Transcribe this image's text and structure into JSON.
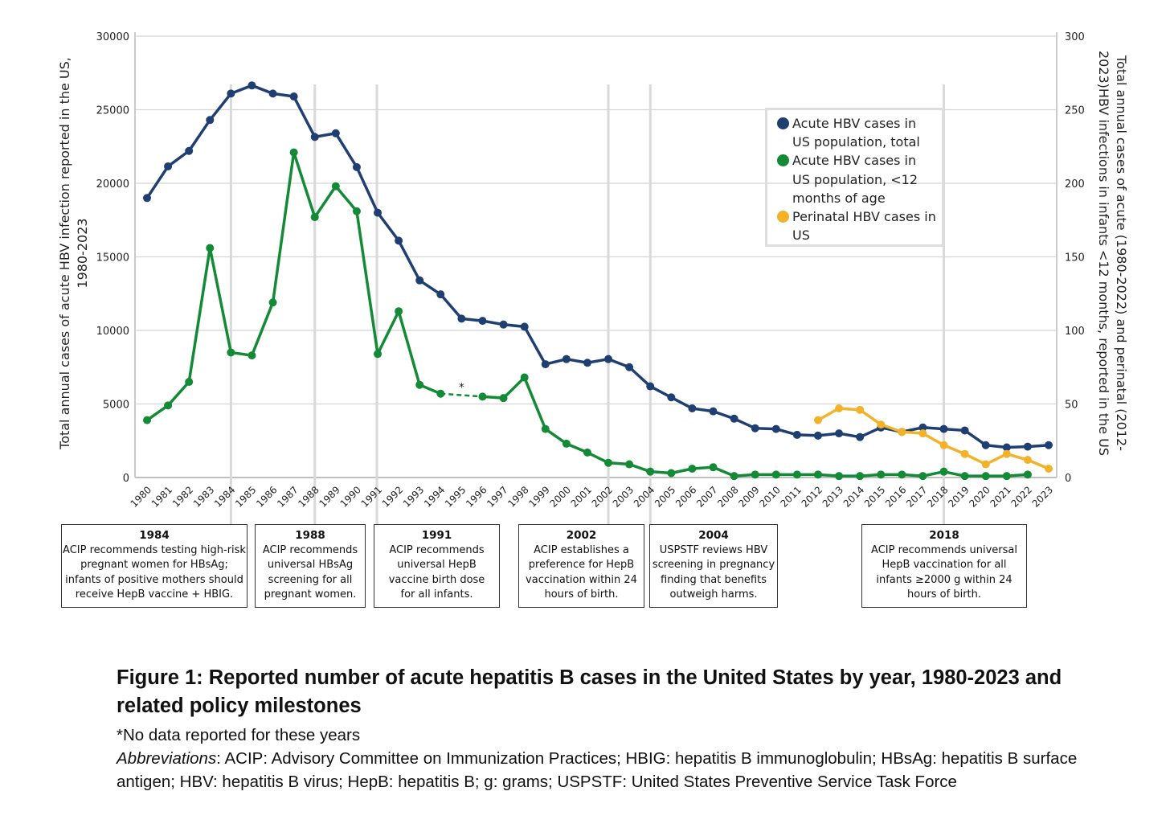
{
  "chart_data": {
    "type": "line",
    "x": [
      1980,
      1981,
      1982,
      1983,
      1984,
      1985,
      1986,
      1987,
      1988,
      1989,
      1990,
      1991,
      1992,
      1993,
      1994,
      1995,
      1996,
      1997,
      1998,
      1999,
      2000,
      2001,
      2002,
      2003,
      2004,
      2005,
      2006,
      2007,
      2008,
      2009,
      2010,
      2011,
      2012,
      2013,
      2014,
      2015,
      2016,
      2017,
      2018,
      2019,
      2020,
      2021,
      2022,
      2023
    ],
    "series": [
      {
        "name": "Acute HBV cases in US population, total",
        "axis": "left",
        "color": "#1f3f73",
        "values": [
          19000,
          21150,
          22200,
          24300,
          26100,
          26650,
          26100,
          25900,
          23150,
          23400,
          21100,
          18000,
          16100,
          13400,
          12450,
          10800,
          10650,
          10400,
          10250,
          7700,
          8050,
          7800,
          8050,
          7500,
          6200,
          5450,
          4700,
          4500,
          4000,
          3350,
          3300,
          2900,
          2850,
          3000,
          2750,
          3400,
          3100,
          3400,
          3300,
          3200,
          2200,
          2050,
          2100,
          2200
        ]
      },
      {
        "name": "Acute HBV cases in US population, <12 months of age",
        "axis": "right",
        "color": "#138a36",
        "values": [
          39,
          49,
          65,
          156,
          85,
          83,
          119,
          221,
          177,
          198,
          181,
          84,
          113,
          63,
          57,
          null,
          55,
          54,
          68,
          33,
          23,
          17,
          10,
          9,
          4,
          3,
          6,
          7,
          1,
          2,
          2,
          2,
          2,
          1,
          1,
          2,
          2,
          1,
          4,
          1,
          1,
          1,
          2,
          null
        ]
      },
      {
        "name": "Perinatal HBV cases in US",
        "axis": "right",
        "color": "#f2b22a",
        "values": [
          null,
          null,
          null,
          null,
          null,
          null,
          null,
          null,
          null,
          null,
          null,
          null,
          null,
          null,
          null,
          null,
          null,
          null,
          null,
          null,
          null,
          null,
          null,
          null,
          null,
          null,
          null,
          null,
          null,
          null,
          null,
          null,
          39,
          47,
          46,
          36,
          31,
          30,
          22,
          16,
          9,
          16,
          12,
          6
        ]
      }
    ],
    "ylabel": "Total annual cases of acute HBV infection reported in the US, 1980-2023",
    "ylabel_right": "Total annual cases of acute (1980-2022) and perinatal (2012-2023)HBV infections in infants <12 months, reported in the US",
    "ylim": [
      0,
      30000
    ],
    "ylim_right": [
      0,
      300
    ],
    "yticks": [
      0,
      5000,
      10000,
      15000,
      20000,
      25000,
      30000
    ],
    "yticks_right": [
      0,
      50,
      100,
      150,
      200,
      250,
      300
    ],
    "grid": true,
    "legend_position": "top-right",
    "gap_marker": "*",
    "milestones": [
      {
        "year": "1984",
        "text": "ACIP recommends testing high-risk pregnant women for HBsAg; infants of positive mothers should receive HepB vaccine + HBIG."
      },
      {
        "year": "1988",
        "text": "ACIP recommends universal HBsAg screening for all pregnant women."
      },
      {
        "year": "1991",
        "text": "ACIP recommends universal HepB vaccine birth dose for all infants."
      },
      {
        "year": "2002",
        "text": "ACIP establishes a preference for HepB vaccination within 24 hours of birth."
      },
      {
        "year": "2004",
        "text": "USPSTF reviews HBV screening in pregnancy finding that benefits outweigh harms."
      },
      {
        "year": "2018",
        "text": "ACIP recommends universal HepB vaccination for all infants ≥2000 g within 24 hours of birth."
      }
    ]
  },
  "caption": {
    "title": "Figure 1: Reported number of acute hepatitis B cases in the United States by year, 1980-2023 and related policy milestones",
    "note": "*No data reported for these years",
    "abbr_label": "Abbreviations",
    "abbr_text": ": ACIP: Advisory Committee on Immunization Practices; HBIG: hepatitis B immunoglobulin; HBsAg: hepatitis B surface antigen; HBV: hepatitis B virus; HepB: hepatitis B; g: grams; USPSTF: United States Preventive Service Task Force"
  }
}
